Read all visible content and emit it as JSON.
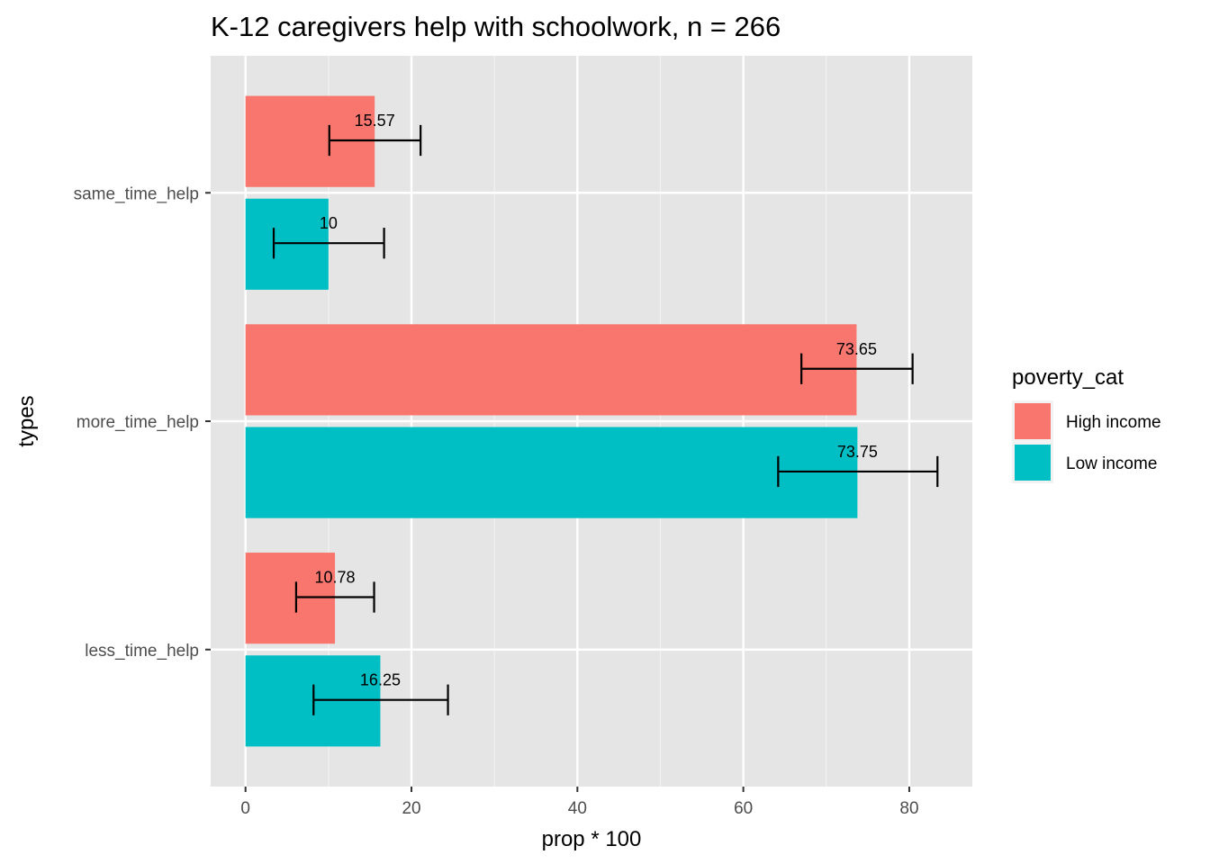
{
  "colors": {
    "panel_background": "#e5e5e5",
    "grid_major": "#ffffff",
    "grid_minor": "#f2f2f2",
    "tick": "#333333",
    "tick_text": "#4d4d4d",
    "error_bar": "#000000"
  },
  "chart_data": {
    "type": "bar",
    "orientation": "horizontal",
    "title": "K-12 caregivers help with schoolwork, n = 266",
    "xlabel": "prop * 100",
    "ylabel": "types",
    "xlim": [
      -4.2,
      87.6
    ],
    "xticks": [
      0,
      20,
      40,
      60,
      80
    ],
    "xtick_labels": [
      "0",
      "20",
      "40",
      "60",
      "80"
    ],
    "grid": true,
    "categories": [
      "less_time_help",
      "more_time_help",
      "same_time_help"
    ],
    "legend": {
      "title": "poverty_cat",
      "placement": "right",
      "entries": [
        "High income",
        "Low income"
      ]
    },
    "series": [
      {
        "name": "High income",
        "color": "#f8766d",
        "values": [
          10.78,
          73.65,
          15.57
        ],
        "labels": [
          "10.78",
          "73.65",
          "15.57"
        ],
        "error_low": [
          6.1,
          67.0,
          10.1
        ],
        "error_high": [
          15.5,
          80.4,
          21.1
        ]
      },
      {
        "name": "Low income",
        "color": "#00bfc4",
        "values": [
          16.25,
          73.75,
          10
        ],
        "labels": [
          "16.25",
          "73.75",
          "10"
        ],
        "error_low": [
          8.2,
          64.2,
          3.4
        ],
        "error_high": [
          24.4,
          83.4,
          16.7
        ]
      }
    ]
  }
}
